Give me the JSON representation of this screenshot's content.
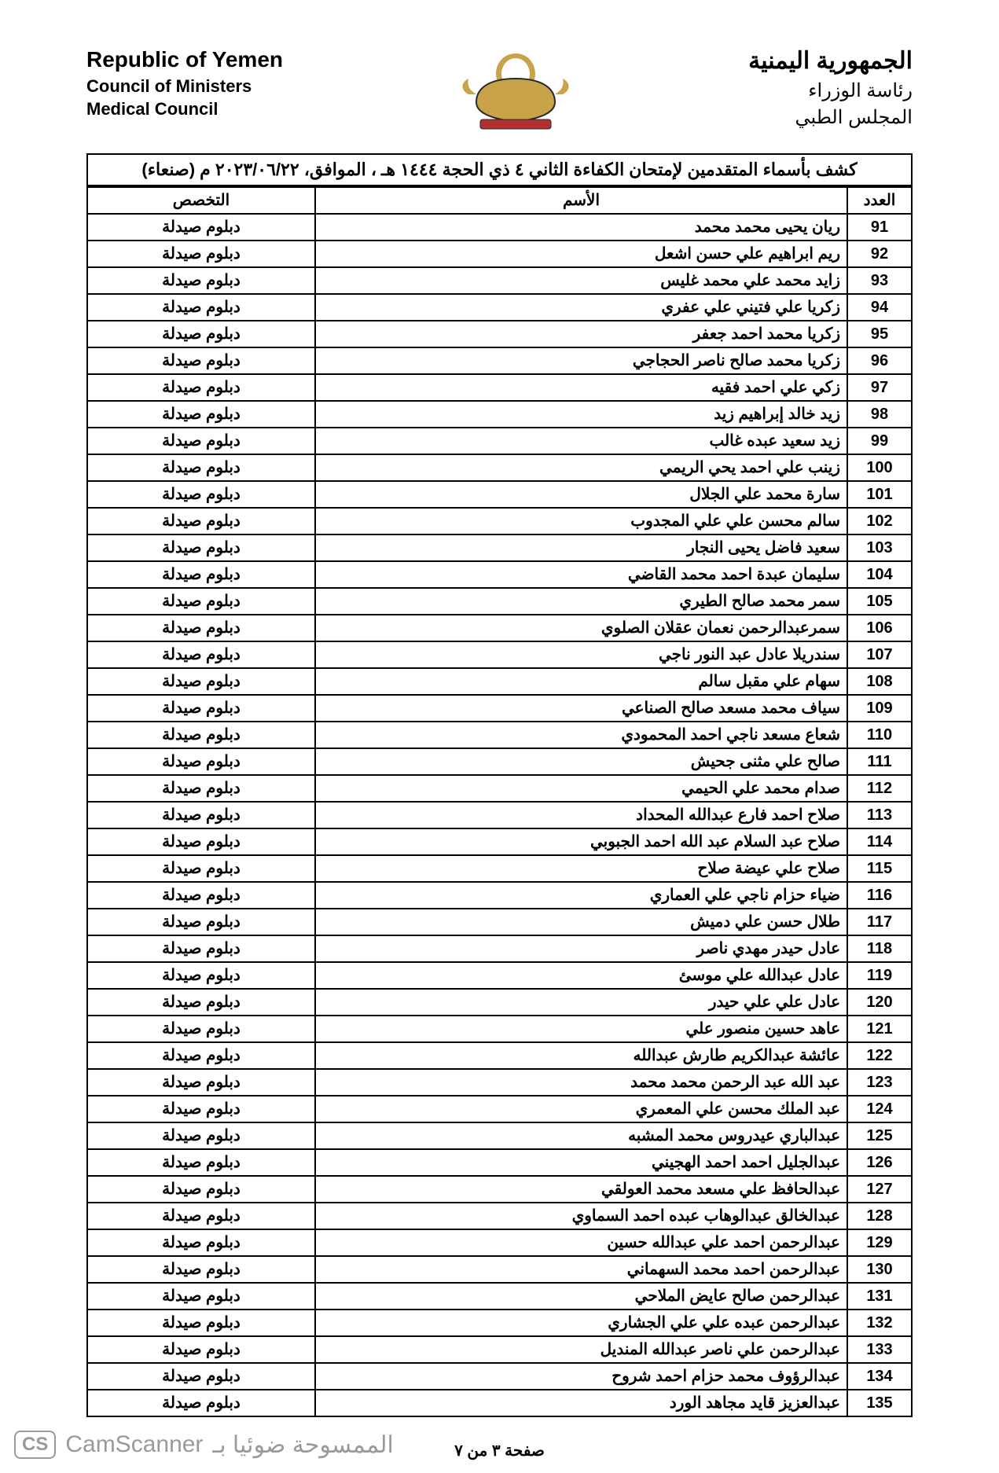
{
  "header": {
    "left": {
      "title_en": "Republic of Yemen",
      "sub1_en": "Council of Ministers",
      "sub2_en": "Medical Council"
    },
    "right": {
      "title_ar": "الجمهورية اليمنية",
      "sub1_ar": "رئاسة الوزراء",
      "sub2_ar": "المجلس الطبي"
    },
    "emblem_colors": {
      "gold": "#c9a34a",
      "dark": "#2b2b2b",
      "red": "#b03030"
    }
  },
  "title_bar": "كشف بأسماء المتقدمين لإمتحان الكفاءة الثاني ٤ ذي الحجة ١٤٤٤ هـ ، الموافق، ٢٠٢٣/٠٦/٢٢ م (صنعاء)",
  "table": {
    "columns": {
      "num": "العدد",
      "name": "الأسم",
      "spec": "التخصص"
    },
    "spec_value": "دبلوم صيدلة",
    "rows": [
      {
        "n": 91,
        "name": "ريان يحيى محمد محمد"
      },
      {
        "n": 92,
        "name": "ريم ابراهيم علي حسن اشعل"
      },
      {
        "n": 93,
        "name": "زايد محمد علي محمد غليس"
      },
      {
        "n": 94,
        "name": "زكريا علي فتيني علي عفري"
      },
      {
        "n": 95,
        "name": "زكريا محمد احمد جعفر"
      },
      {
        "n": 96,
        "name": "زكريا محمد صالح ناصر الحجاجي"
      },
      {
        "n": 97,
        "name": "زكي علي احمد فقيه"
      },
      {
        "n": 98,
        "name": "زيد خالد إبراهيم زيد"
      },
      {
        "n": 99,
        "name": "زيد سعيد عبده غالب"
      },
      {
        "n": 100,
        "name": "زينب علي احمد يحي الريمي"
      },
      {
        "n": 101,
        "name": "سارة محمد علي الجلال"
      },
      {
        "n": 102,
        "name": "سالم محسن علي علي المجدوب"
      },
      {
        "n": 103,
        "name": "سعيد فاضل يحيى النجار"
      },
      {
        "n": 104,
        "name": "سليمان عبدة احمد محمد القاضي"
      },
      {
        "n": 105,
        "name": "سمر محمد صالح الطيري"
      },
      {
        "n": 106,
        "name": "سمرعبدالرحمن نعمان عقلان الصلوي"
      },
      {
        "n": 107,
        "name": "سندريلا عادل عبد النور ناجي"
      },
      {
        "n": 108,
        "name": "سهام علي مقبل سالم"
      },
      {
        "n": 109,
        "name": "سياف محمد مسعد صالح الصناعي"
      },
      {
        "n": 110,
        "name": "شعاع مسعد ناجي احمد المحمودي"
      },
      {
        "n": 111,
        "name": "صالح علي مثنى جحيش"
      },
      {
        "n": 112,
        "name": "صدام محمد علي الحيمي"
      },
      {
        "n": 113,
        "name": "صلاح احمد فارع عبدالله المحداد"
      },
      {
        "n": 114,
        "name": "صلاح عبد السلام عبد الله احمد الجبوبي"
      },
      {
        "n": 115,
        "name": "صلاح علي عيضة صلاح"
      },
      {
        "n": 116,
        "name": "ضياء حزام ناجي علي العماري"
      },
      {
        "n": 117,
        "name": "طلال حسن علي دميش"
      },
      {
        "n": 118,
        "name": "عادل حيدر مهدي ناصر"
      },
      {
        "n": 119,
        "name": "عادل عبدالله علي موسئ"
      },
      {
        "n": 120,
        "name": "عادل علي علي حيدر"
      },
      {
        "n": 121,
        "name": "عاهد حسين منصور علي"
      },
      {
        "n": 122,
        "name": "عائشة عبدالكريم طارش عبدالله"
      },
      {
        "n": 123,
        "name": "عبد الله عبد الرحمن محمد محمد"
      },
      {
        "n": 124,
        "name": "عبد الملك محسن علي المعمري"
      },
      {
        "n": 125,
        "name": "عبدالباري عيدروس محمد المشبه"
      },
      {
        "n": 126,
        "name": "عبدالجليل احمد احمد الهجيني"
      },
      {
        "n": 127,
        "name": "عبدالحافظ علي مسعد محمد العولقي"
      },
      {
        "n": 128,
        "name": "عبدالخالق عبدالوهاب عبده احمد السماوي"
      },
      {
        "n": 129,
        "name": "عبدالرحمن احمد علي عبدالله حسين"
      },
      {
        "n": 130,
        "name": "عبدالرحمن احمد محمد السهماني"
      },
      {
        "n": 131,
        "name": "عبدالرحمن صالح عايض الملاحي"
      },
      {
        "n": 132,
        "name": "عبدالرحمن عبده علي علي الجشاري"
      },
      {
        "n": 133,
        "name": "عبدالرحمن علي ناصر عبدالله المنديل"
      },
      {
        "n": 134,
        "name": "عبدالرؤوف محمد حزام احمد شروح"
      },
      {
        "n": 135,
        "name": "عبدالعزيز قايد مجاهد الورد"
      }
    ]
  },
  "footer_page": "صفحة ٣ من ٧",
  "scan_footer": {
    "ar": "الممسوحة ضوئيا بـ",
    "name": "CamScanner",
    "badge": "CS"
  }
}
